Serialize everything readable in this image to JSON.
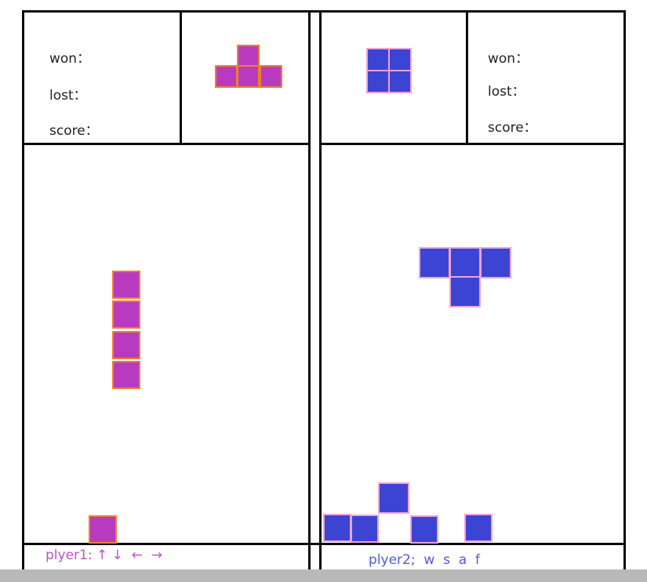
{
  "player1": {
    "stats": {
      "won_label": "won：",
      "lost_label": "lost：",
      "score_label": "score："
    },
    "controls": "plyer1: ↑ ↓  ←  →",
    "controls_color": "#c24ed1",
    "block_fill": "#b83bbf",
    "block_border": "#f07f28"
  },
  "player2": {
    "stats": {
      "won_label": "won：",
      "lost_label": "lost：",
      "score_label": "score："
    },
    "controls": "plyer2;  w  s  a  f",
    "controls_color": "#4f5bd8",
    "block_fill": "#3c44d4",
    "block_border": "#f0a3d8"
  }
}
